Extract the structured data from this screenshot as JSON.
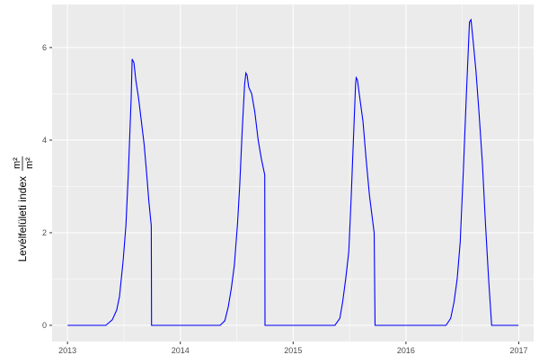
{
  "chart_data": {
    "type": "line",
    "title": "",
    "xlabel": "",
    "ylabel": "Levélfelületi index",
    "ylabel_unit_numerator": "m²",
    "ylabel_unit_denominator": "m²",
    "xlim": [
      "2012-11-12",
      "2017-02-18"
    ],
    "ylim": [
      -0.35,
      6.93
    ],
    "x_ticks": [
      "2013",
      "2014",
      "2015",
      "2016",
      "2017"
    ],
    "y_ticks": [
      "0",
      "2",
      "4",
      "6"
    ],
    "grid": true,
    "line_color": "#0000ff",
    "panel_color": "#ebebeb",
    "series": [
      {
        "x": [
          "2013-01-01",
          "2013-05-05",
          "2013-05-26",
          "2013-06-09",
          "2013-06-18",
          "2013-06-24",
          "2013-06-30",
          "2013-07-09",
          "2013-07-17",
          "2013-07-26",
          "2013-07-29",
          "2013-08-04",
          "2013-08-10",
          "2013-08-19",
          "2013-08-28",
          "2013-09-06",
          "2013-09-15",
          "2013-09-21",
          "2013-09-29",
          "2013-09-30",
          "2014-05-10",
          "2014-05-25",
          "2014-06-05",
          "2014-06-15",
          "2014-06-25",
          "2014-07-05",
          "2014-07-12",
          "2014-07-20",
          "2014-07-28",
          "2014-08-01",
          "2014-08-05",
          "2014-08-10",
          "2014-08-20",
          "2014-08-30",
          "2014-09-10",
          "2014-09-20",
          "2014-10-01",
          "2014-10-02",
          "2015-05-16",
          "2015-06-01",
          "2015-06-10",
          "2015-06-20",
          "2015-06-30",
          "2015-07-08",
          "2015-07-15",
          "2015-07-22",
          "2015-07-24",
          "2015-07-28",
          "2015-08-05",
          "2015-08-15",
          "2015-08-25",
          "2015-09-05",
          "2015-09-20",
          "2015-09-23",
          "2016-05-10",
          "2016-05-25",
          "2016-06-05",
          "2016-06-15",
          "2016-06-25",
          "2016-07-05",
          "2016-07-15",
          "2016-07-25",
          "2016-07-30",
          "2016-08-05",
          "2016-08-15",
          "2016-08-25",
          "2016-09-05",
          "2016-09-15",
          "2016-09-25",
          "2016-10-05",
          "2016-12-31"
        ],
        "y": [
          0,
          0,
          0.12,
          0.33,
          0.62,
          1.0,
          1.4,
          2.17,
          3.3,
          4.9,
          5.75,
          5.67,
          5.3,
          4.9,
          4.4,
          3.9,
          3.2,
          2.7,
          2.15,
          0,
          0,
          0.1,
          0.4,
          0.8,
          1.3,
          2.2,
          3.0,
          4.2,
          5.2,
          5.45,
          5.4,
          5.15,
          5.0,
          4.6,
          4.0,
          3.6,
          3.25,
          0,
          0,
          0.15,
          0.5,
          1.0,
          1.6,
          2.8,
          4.0,
          5.2,
          5.35,
          5.3,
          4.9,
          4.4,
          3.6,
          2.8,
          2.0,
          0,
          0,
          0.15,
          0.5,
          1.0,
          1.8,
          3.3,
          5.0,
          6.55,
          6.6,
          6.2,
          5.5,
          4.6,
          3.5,
          2.2,
          1.0,
          0,
          0
        ]
      }
    ]
  }
}
